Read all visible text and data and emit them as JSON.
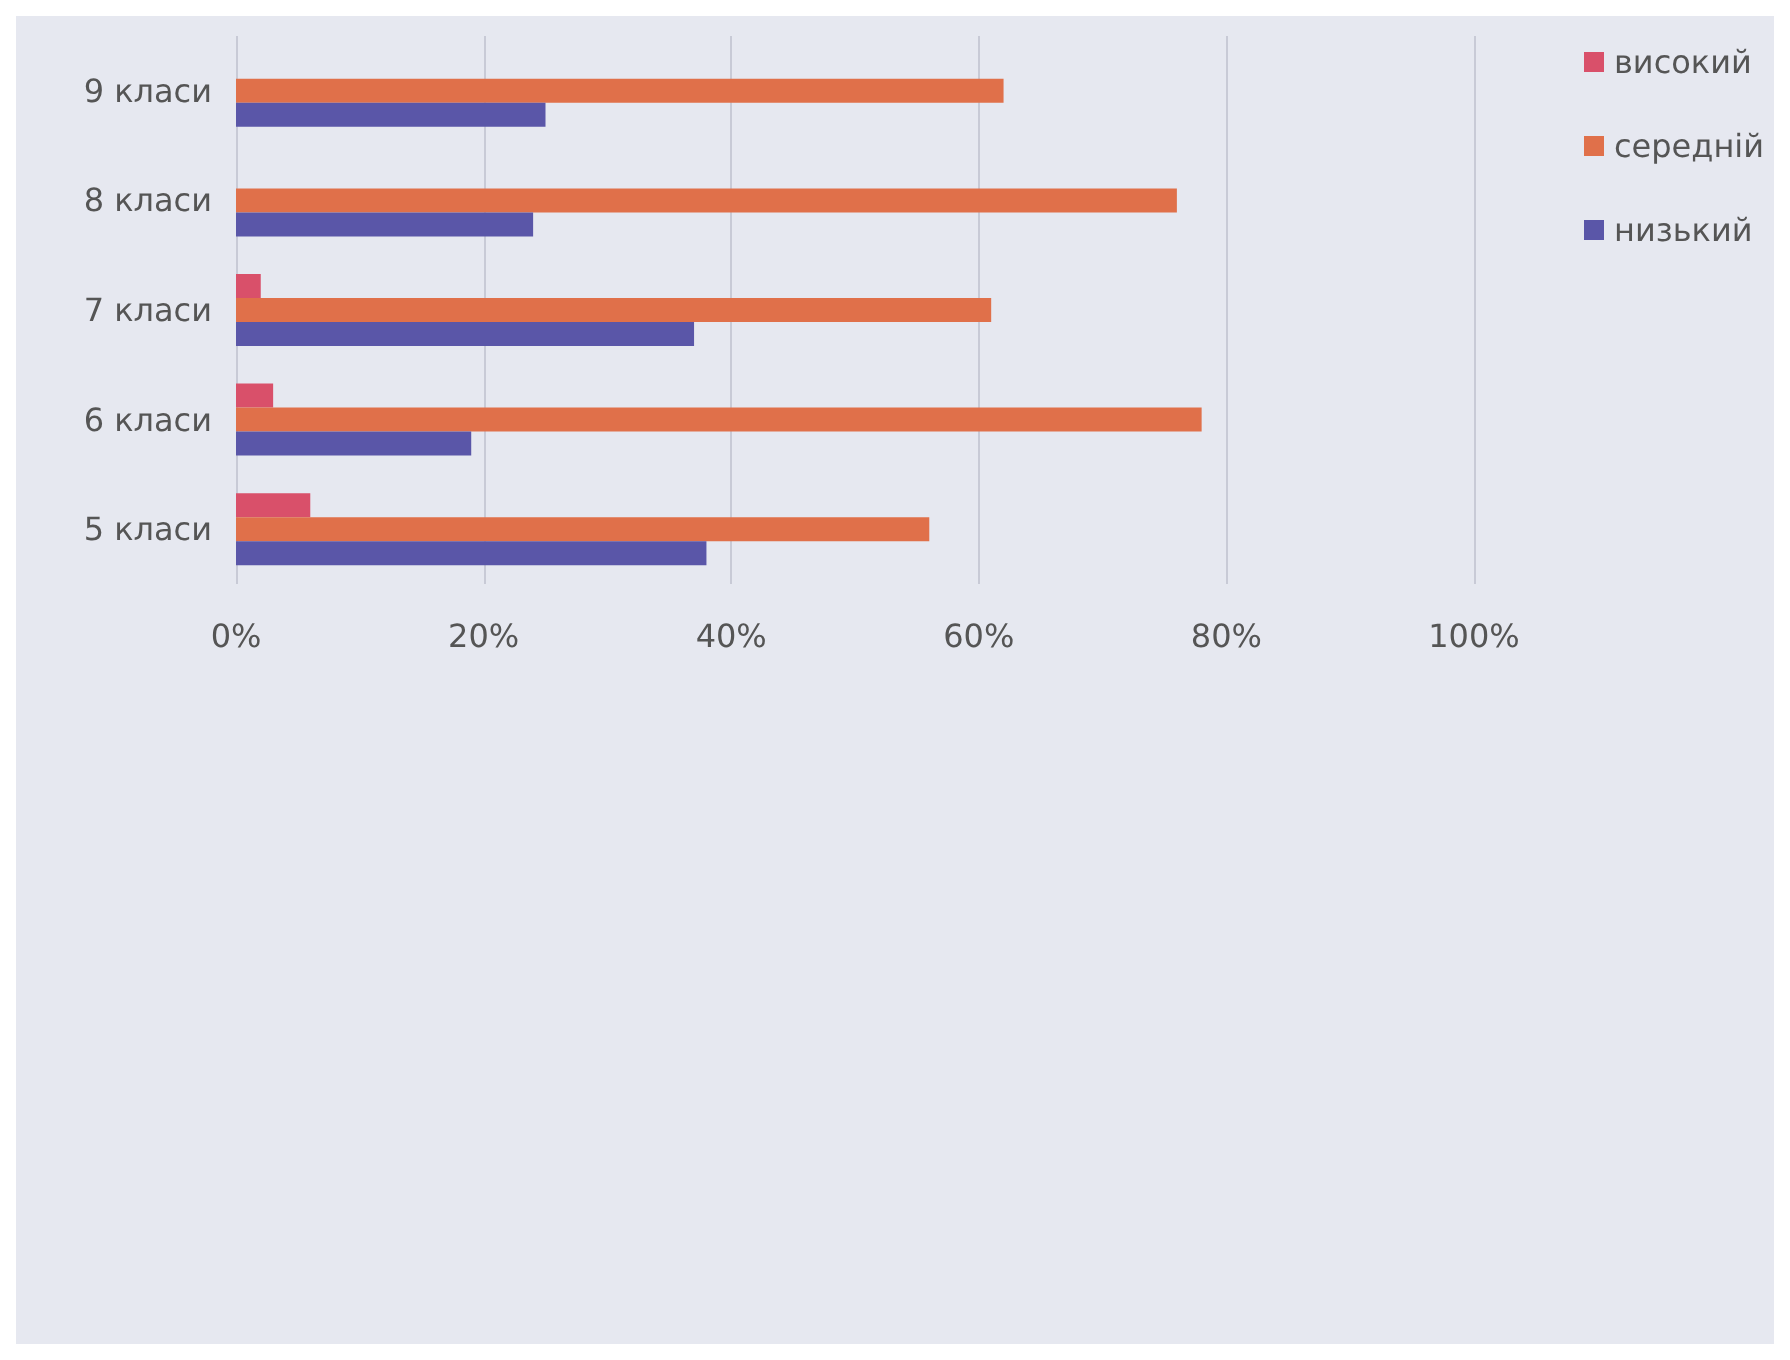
{
  "chart_data": {
    "type": "bar",
    "orientation": "horizontal",
    "categories": [
      "9 класи",
      "8 класи",
      "7 класи",
      "6 класи",
      "5 класи"
    ],
    "series": [
      {
        "name": "високий",
        "color": "#d9506a",
        "values": [
          null,
          0,
          2,
          3,
          6
        ]
      },
      {
        "name": "середній",
        "color": "#e0704a",
        "values": [
          62,
          76,
          61,
          78,
          56
        ]
      },
      {
        "name": "низький",
        "color": "#5a56a8",
        "values": [
          25,
          24,
          37,
          19,
          38
        ]
      }
    ],
    "xlim": [
      0,
      100
    ],
    "xticks": [
      {
        "value": 0,
        "label": "0%"
      },
      {
        "value": 20,
        "label": "20%"
      },
      {
        "value": 40,
        "label": "40%"
      },
      {
        "value": 60,
        "label": "60%"
      },
      {
        "value": 80,
        "label": "80%"
      },
      {
        "value": 100,
        "label": "100%"
      }
    ],
    "grid": "x",
    "legend": "right"
  }
}
